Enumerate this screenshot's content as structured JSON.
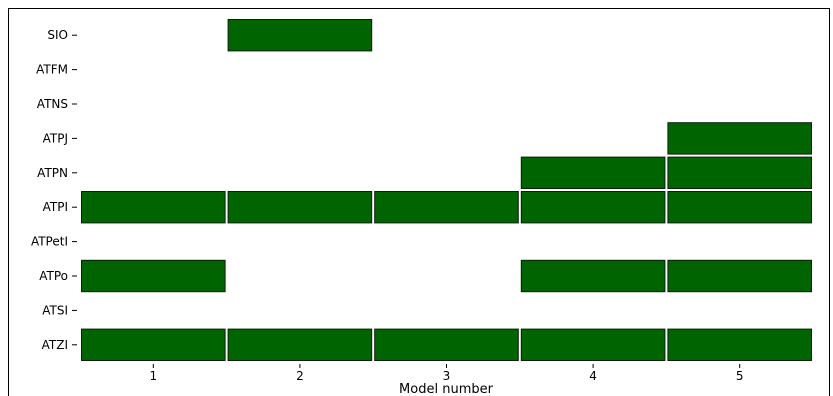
{
  "chart_data": {
    "type": "heatmap",
    "title": "",
    "xlabel": "Model number",
    "ylabel": "",
    "x": [
      "1",
      "2",
      "3",
      "4",
      "5"
    ],
    "y": [
      "SIO",
      "ATFM",
      "ATNS",
      "ATPJ",
      "ATPN",
      "ATPI",
      "ATPetI",
      "ATPo",
      "ATSI",
      "ATZI"
    ],
    "matrix": [
      [
        0,
        1,
        0,
        0,
        0
      ],
      [
        0,
        0,
        0,
        0,
        0
      ],
      [
        0,
        0,
        0,
        0,
        0
      ],
      [
        0,
        0,
        0,
        0,
        1
      ],
      [
        0,
        0,
        0,
        1,
        1
      ],
      [
        1,
        1,
        1,
        1,
        1
      ],
      [
        0,
        0,
        0,
        0,
        0
      ],
      [
        1,
        0,
        0,
        1,
        1
      ],
      [
        0,
        0,
        0,
        0,
        0
      ],
      [
        1,
        1,
        1,
        1,
        1
      ]
    ],
    "cell_color": "#006400",
    "cell_border_color": "#0b1f0b",
    "grid": false,
    "legend": "none"
  }
}
